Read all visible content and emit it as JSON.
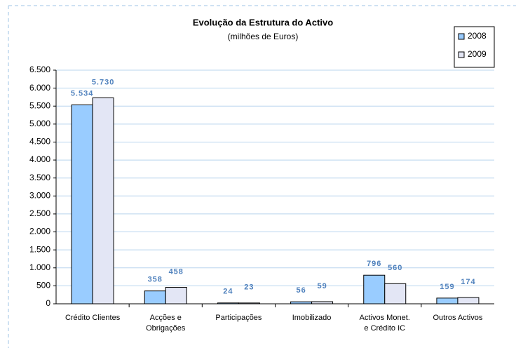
{
  "chart_data": {
    "type": "bar",
    "title": "Evolução da Estrutura do Activo",
    "subtitle": "(milhões de Euros)",
    "categories": [
      "Crédito Clientes",
      "Acções e\nObrigações",
      "Participações",
      "Imobilizado",
      "Activos Monet.\ne Crédito IC",
      "Outros Activos"
    ],
    "series": [
      {
        "name": "2008",
        "color": "#99ccff",
        "values": [
          5534,
          358,
          24,
          56,
          796,
          159
        ],
        "value_labels": [
          "5.534",
          "358",
          "24",
          "56",
          "796",
          "159"
        ]
      },
      {
        "name": "2009",
        "color": "#e3e6f5",
        "values": [
          5730,
          458,
          23,
          59,
          560,
          174
        ],
        "value_labels": [
          "5.730",
          "458",
          "23",
          "59",
          "560",
          "174"
        ]
      }
    ],
    "ylim": [
      0,
      6500
    ],
    "yticks": [
      0,
      500,
      {
        "value": 1000,
        "label": "1.000"
      },
      {
        "value": 1500,
        "label": "1.500"
      },
      {
        "value": 2000,
        "label": "2.000"
      },
      {
        "value": 2500,
        "label": "2.500"
      },
      {
        "value": 3000,
        "label": "3.000"
      },
      {
        "value": 3500,
        "label": "3.500"
      },
      {
        "value": 4000,
        "label": "4.000"
      },
      {
        "value": 4500,
        "label": "4.500"
      },
      {
        "value": 5000,
        "label": "5.000"
      },
      {
        "value": 5500,
        "label": "5.500"
      },
      {
        "value": 6000,
        "label": "6.000"
      },
      {
        "value": 6500,
        "label": "6.500"
      }
    ],
    "grid": true,
    "legend": "top-right"
  }
}
